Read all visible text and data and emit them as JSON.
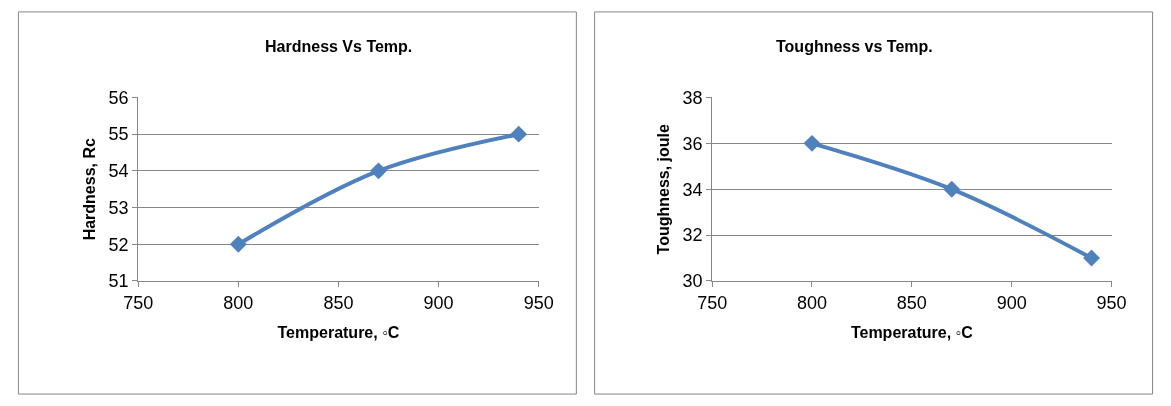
{
  "chart_data": [
    {
      "type": "line",
      "title": "Hardness Vs Temp.",
      "xlabel": "Temperature, ◦C",
      "ylabel": "Hardness, Rc",
      "x": [
        800,
        870,
        940
      ],
      "series": [
        {
          "color": "#4f81bd",
          "values": [
            52,
            54,
            55
          ]
        }
      ],
      "xlim": [
        750,
        950
      ],
      "xticks": [
        750,
        800,
        850,
        900,
        950
      ],
      "ylim": [
        51,
        56
      ],
      "yticks": [
        51,
        52,
        53,
        54,
        55,
        56
      ],
      "grid": "y",
      "marker": "diamond",
      "line_style": "solid"
    },
    {
      "type": "line",
      "title": "Toughness vs Temp.",
      "xlabel": "Temperature, ◦C",
      "ylabel": "Toughness, joule",
      "x": [
        800,
        870,
        940
      ],
      "series": [
        {
          "color": "#4f81bd",
          "values": [
            36,
            34,
            31
          ]
        }
      ],
      "xlim": [
        750,
        950
      ],
      "xticks": [
        750,
        800,
        850,
        900,
        950
      ],
      "ylim": [
        30,
        38
      ],
      "yticks": [
        30,
        32,
        34,
        36,
        38
      ],
      "grid": "y",
      "marker": "diamond",
      "line_style": "solid"
    }
  ]
}
